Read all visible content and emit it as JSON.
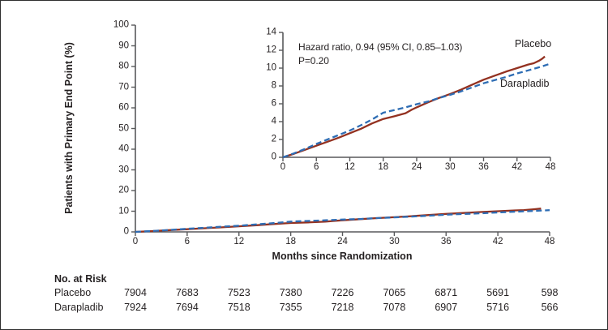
{
  "figure_labels": {
    "ylabel": "Patients with Primary End Point (%)",
    "xlabel": "Months since Randomization",
    "annotation_line1": "Hazard ratio, 0.94 (95% CI, 0.85–1.03)",
    "annotation_line2": "P=0.20",
    "placebo_label": "Placebo",
    "darapladib_label": "Darapladib"
  },
  "colors": {
    "placebo": "#933120",
    "darapladib": "#2e6db4",
    "axis": "#58595b",
    "text": "#231f20"
  },
  "chart_data": {
    "type": "line",
    "title": "",
    "xlabel": "Months since Randomization",
    "ylabel": "Patients with Primary End Point (%)",
    "x_ticks": [
      0,
      6,
      12,
      18,
      24,
      30,
      36,
      42,
      48
    ],
    "xlim": [
      0,
      48
    ],
    "grid": false,
    "legend_position": "inline-labels",
    "annotations": [
      "Hazard ratio, 0.94 (95% CI, 0.85–1.03)",
      "P=0.20"
    ],
    "views": [
      {
        "id": "main",
        "ylim": [
          0,
          100
        ],
        "y_ticks": [
          0,
          10,
          20,
          30,
          40,
          50,
          60,
          70,
          80,
          90,
          100
        ]
      },
      {
        "id": "inset",
        "ylim": [
          0,
          14
        ],
        "y_ticks": [
          0,
          2,
          4,
          6,
          8,
          10,
          12,
          14
        ]
      }
    ],
    "series": [
      {
        "name": "Placebo",
        "line": "solid",
        "color": "#933120",
        "points": [
          [
            0,
            0
          ],
          [
            2,
            0.4
          ],
          [
            4,
            0.85
          ],
          [
            6,
            1.3
          ],
          [
            8,
            1.75
          ],
          [
            10,
            2.2
          ],
          [
            12,
            2.7
          ],
          [
            14,
            3.2
          ],
          [
            16,
            3.8
          ],
          [
            18,
            4.3
          ],
          [
            20,
            4.6
          ],
          [
            22,
            4.95
          ],
          [
            23,
            5.3
          ],
          [
            24,
            5.6
          ],
          [
            26,
            6.15
          ],
          [
            28,
            6.65
          ],
          [
            30,
            7.1
          ],
          [
            32,
            7.6
          ],
          [
            34,
            8.15
          ],
          [
            36,
            8.7
          ],
          [
            38,
            9.15
          ],
          [
            40,
            9.6
          ],
          [
            42,
            10.0
          ],
          [
            44,
            10.4
          ],
          [
            45,
            10.55
          ],
          [
            46,
            10.85
          ],
          [
            46.5,
            11.05
          ],
          [
            47,
            11.3
          ]
        ]
      },
      {
        "name": "Darapladib",
        "line": "dashed",
        "color": "#2e6db4",
        "points": [
          [
            0,
            0
          ],
          [
            2,
            0.45
          ],
          [
            4,
            0.95
          ],
          [
            6,
            1.5
          ],
          [
            8,
            2.0
          ],
          [
            10,
            2.5
          ],
          [
            12,
            3.0
          ],
          [
            14,
            3.6
          ],
          [
            16,
            4.25
          ],
          [
            18,
            5.0
          ],
          [
            20,
            5.3
          ],
          [
            22,
            5.6
          ],
          [
            24,
            5.95
          ],
          [
            26,
            6.25
          ],
          [
            28,
            6.65
          ],
          [
            30,
            7.0
          ],
          [
            32,
            7.4
          ],
          [
            34,
            7.85
          ],
          [
            36,
            8.3
          ],
          [
            38,
            8.65
          ],
          [
            40,
            9.0
          ],
          [
            42,
            9.4
          ],
          [
            44,
            9.75
          ],
          [
            46,
            10.1
          ],
          [
            48,
            10.5
          ]
        ]
      }
    ]
  },
  "risk_table": {
    "header": "No. at Risk",
    "months": [
      0,
      6,
      12,
      18,
      24,
      30,
      36,
      42,
      48
    ],
    "rows": [
      {
        "label": "Placebo",
        "values": [
          "7904",
          "7683",
          "7523",
          "7380",
          "7226",
          "7065",
          "6871",
          "5691",
          "598"
        ]
      },
      {
        "label": "Darapladib",
        "values": [
          "7924",
          "7694",
          "7518",
          "7355",
          "7218",
          "7078",
          "6907",
          "5716",
          "566"
        ]
      }
    ]
  }
}
